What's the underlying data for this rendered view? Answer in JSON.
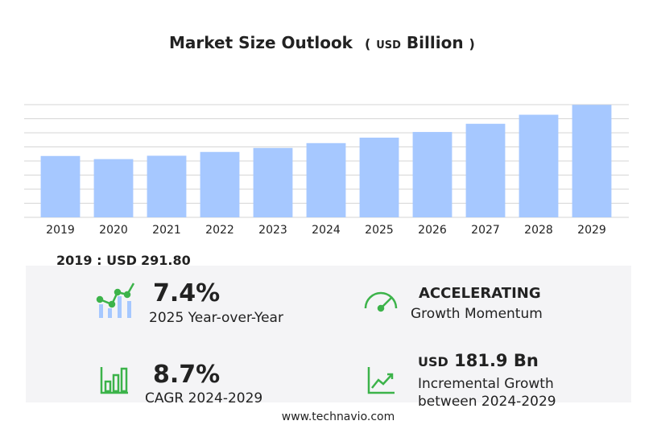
{
  "chart_data": {
    "type": "bar",
    "title": "Market Size Outlook",
    "unit": {
      "open": "(",
      "currency": "USD",
      "name": "Billion",
      "close": ")"
    },
    "categories": [
      "2019",
      "2020",
      "2021",
      "2022",
      "2023",
      "2024",
      "2025",
      "2026",
      "2027",
      "2028",
      "2029"
    ],
    "values": [
      291.8,
      277,
      293,
      311,
      330,
      353,
      379,
      406,
      445,
      488,
      535
    ],
    "color": "#a6c8ff",
    "ylim": [
      0,
      536
    ],
    "yticks": [
      0,
      67,
      134,
      201,
      268,
      335,
      402,
      469,
      536
    ],
    "grid": true
  },
  "base_year": {
    "label": "2019 : USD",
    "value": "291.80"
  },
  "stats": [
    {
      "value": "7.4%",
      "label": "2025 Year-over-Year"
    },
    {
      "value": "ACCELERATING",
      "label": "Growth Momentum"
    },
    {
      "value": "8.7%",
      "label": "CAGR 2024-2029"
    },
    {
      "currency": "USD",
      "value": "181.9 Bn",
      "label": "Incremental Growth",
      "label2": "between 2024-2029"
    }
  ],
  "footer": "www.technavio.com"
}
